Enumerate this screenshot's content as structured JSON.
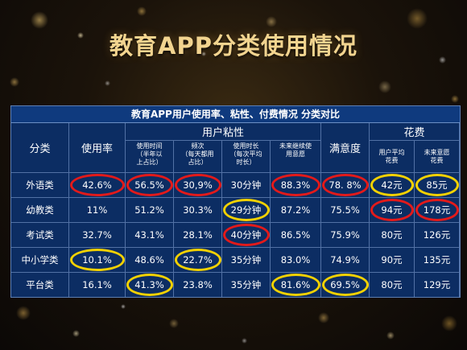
{
  "page_title": "教育APP分类使用情况",
  "table_title": "教育APP用户使用率、粘性、付费情况 分类对比",
  "headers": {
    "category": "分类",
    "usage_rate": "使用率",
    "stickiness": "用户粘性",
    "satisfaction": "满意度",
    "spending": "花费",
    "usage_time": "使用时间\n（半年以\n上占比）",
    "frequency": "频次\n（每天都用\n占比）",
    "duration": "使用时长\n（每次平均\n时长）",
    "continue_intent": "未来继续使\n用意愿",
    "avg_spend": "用户平均\n花费",
    "future_spend": "未来意愿\n花费"
  },
  "rows": [
    {
      "category": "外语类",
      "usage": "42.6%",
      "time": "56.5%",
      "freq": "30,9%",
      "duration": "30分钟",
      "intent": "88.3%",
      "satisfaction": "78. 8%",
      "avg_spend": "42元",
      "future_spend": "85元"
    },
    {
      "category": "幼教类",
      "usage": "11%",
      "time": "51.2%",
      "freq": "30.3%",
      "duration": "29分钟",
      "intent": "87.2%",
      "satisfaction": "75.5%",
      "avg_spend": "94元",
      "future_spend": "178元"
    },
    {
      "category": "考试类",
      "usage": "32.7%",
      "time": "43.1%",
      "freq": "28.1%",
      "duration": "40分钟",
      "intent": "86.5%",
      "satisfaction": "75.9%",
      "avg_spend": "80元",
      "future_spend": "126元"
    },
    {
      "category": "中小学类",
      "usage": "10.1%",
      "time": "48.6%",
      "freq": "22.7%",
      "duration": "35分钟",
      "intent": "83.0%",
      "satisfaction": "74.9%",
      "avg_spend": "90元",
      "future_spend": "135元"
    },
    {
      "category": "平台类",
      "usage": "16.1%",
      "time": "41.3%",
      "freq": "23.8%",
      "duration": "35分钟",
      "intent": "81.6%",
      "satisfaction": "69.5%",
      "avg_spend": "80元",
      "future_spend": "129元"
    }
  ],
  "highlight_colors": {
    "red": "#e31a1a",
    "yellow": "#f3d100"
  }
}
